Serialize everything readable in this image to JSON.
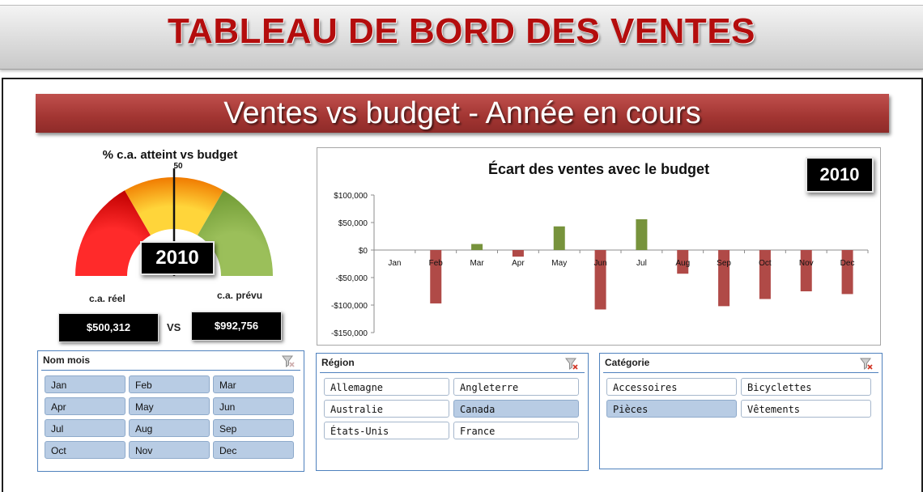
{
  "header": {
    "title": "TABLEAU DE BORD DES VENTES",
    "subtitle": "Ventes vs budget - Année en cours"
  },
  "gauge": {
    "title": "% c.a. atteint vs budget",
    "scale_mark": "50",
    "year": "2010",
    "pct_achieved": 0.5,
    "actual_label": "c.a. réel",
    "actual_value": "$500,312",
    "vs_label": "VS",
    "forecast_label": "c.a. prévu",
    "forecast_value": "$992,756"
  },
  "chart_data": {
    "type": "bar",
    "title": "Écart des ventes avec le budget",
    "year_badge": "2010",
    "categories": [
      "Jan",
      "Feb",
      "Mar",
      "Apr",
      "May",
      "Jun",
      "Jul",
      "Aug",
      "Sep",
      "Oct",
      "Nov",
      "Dec"
    ],
    "values": [
      0,
      -97000,
      11000,
      -12000,
      43000,
      -108000,
      56000,
      -43000,
      -102000,
      -89000,
      -75000,
      -80000
    ],
    "ylim": [
      -150000,
      100000
    ],
    "yticks": [
      100000,
      50000,
      0,
      -50000,
      -100000,
      -150000
    ],
    "ytick_labels": [
      "$100,000",
      "$50,000",
      "$0",
      "-$50,000",
      "-$100,000",
      "-$150,000"
    ],
    "positive_color": "#77933c",
    "negative_color": "#b04a47",
    "grid": false,
    "legend": "none"
  },
  "slicers": {
    "month": {
      "header": "Nom mois",
      "items": [
        {
          "label": "Jan",
          "selected": true
        },
        {
          "label": "Feb",
          "selected": true
        },
        {
          "label": "Mar",
          "selected": true
        },
        {
          "label": "Apr",
          "selected": true
        },
        {
          "label": "May",
          "selected": true
        },
        {
          "label": "Jun",
          "selected": true
        },
        {
          "label": "Jul",
          "selected": true
        },
        {
          "label": "Aug",
          "selected": true
        },
        {
          "label": "Sep",
          "selected": true
        },
        {
          "label": "Oct",
          "selected": true
        },
        {
          "label": "Nov",
          "selected": true
        },
        {
          "label": "Dec",
          "selected": true
        }
      ]
    },
    "region": {
      "header": "Région",
      "items": [
        {
          "label": "Allemagne",
          "selected": false
        },
        {
          "label": "Angleterre",
          "selected": false
        },
        {
          "label": "Australie",
          "selected": false
        },
        {
          "label": "Canada",
          "selected": true
        },
        {
          "label": "États-Unis",
          "selected": false
        },
        {
          "label": "France",
          "selected": false
        }
      ]
    },
    "category": {
      "header": "Catégorie",
      "items": [
        {
          "label": "Accessoires",
          "selected": false
        },
        {
          "label": "Bicyclettes",
          "selected": false
        },
        {
          "label": "Pièces",
          "selected": true
        },
        {
          "label": "Vêtements",
          "selected": false
        }
      ]
    }
  },
  "colors": {
    "title_red": "#b40d0d",
    "banner_red": "#a23532",
    "slicer_blue": "#4f81bd",
    "slicer_selected": "#b8cce4"
  },
  "icons": {
    "clear_filter": "clear-filter-icon"
  }
}
